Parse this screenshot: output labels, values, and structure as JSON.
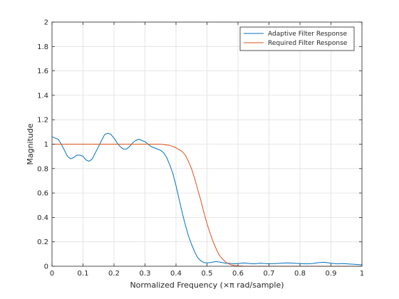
{
  "chart_data": {
    "type": "line",
    "title": "",
    "xlabel": "Normalized Frequency  (×π rad/sample)",
    "ylabel": "Magnitude",
    "xlim": [
      0,
      1
    ],
    "ylim": [
      0,
      2
    ],
    "xticks": [
      0,
      0.1,
      0.2,
      0.3,
      0.4,
      0.5,
      0.6,
      0.7,
      0.8,
      0.9,
      1
    ],
    "xtick_labels": [
      "0",
      "0.1",
      "0.2",
      "0.3",
      "0.4",
      "0.5",
      "0.6",
      "0.7",
      "0.8",
      "0.9",
      "1"
    ],
    "yticks": [
      0,
      0.2,
      0.4,
      0.6,
      0.8,
      1,
      1.2,
      1.4,
      1.6,
      1.8,
      2
    ],
    "ytick_labels": [
      "0",
      "0.2",
      "0.4",
      "0.6",
      "0.8",
      "1",
      "1.2",
      "1.4",
      "1.6",
      "1.8",
      "2"
    ],
    "grid": true,
    "legend_position": "top-right",
    "series": [
      {
        "name": "Adaptive Filter Response",
        "color": "#0072BD",
        "x": [
          0,
          0.01,
          0.02,
          0.03,
          0.04,
          0.05,
          0.06,
          0.07,
          0.08,
          0.09,
          0.1,
          0.11,
          0.12,
          0.13,
          0.14,
          0.15,
          0.16,
          0.17,
          0.18,
          0.19,
          0.2,
          0.21,
          0.22,
          0.23,
          0.24,
          0.25,
          0.26,
          0.27,
          0.28,
          0.29,
          0.3,
          0.31,
          0.32,
          0.33,
          0.34,
          0.35,
          0.36,
          0.37,
          0.38,
          0.39,
          0.4,
          0.41,
          0.42,
          0.43,
          0.44,
          0.45,
          0.46,
          0.47,
          0.48,
          0.49,
          0.5,
          0.51,
          0.52,
          0.53,
          0.54,
          0.55,
          0.56,
          0.57,
          0.58,
          0.59,
          0.6,
          0.61,
          0.62,
          0.63,
          0.64,
          0.65,
          0.66,
          0.67,
          0.68,
          0.69,
          0.7,
          0.72,
          0.74,
          0.76,
          0.78,
          0.8,
          0.82,
          0.84,
          0.86,
          0.88,
          0.9,
          0.92,
          0.94,
          0.96,
          0.98,
          1
        ],
        "y": [
          1.06,
          1.05,
          1.04,
          1.0,
          0.95,
          0.9,
          0.88,
          0.89,
          0.91,
          0.91,
          0.9,
          0.87,
          0.86,
          0.88,
          0.93,
          0.98,
          1.03,
          1.08,
          1.09,
          1.08,
          1.05,
          1.01,
          0.98,
          0.96,
          0.96,
          0.98,
          1.01,
          1.03,
          1.04,
          1.03,
          1.02,
          1.0,
          0.98,
          0.97,
          0.96,
          0.95,
          0.93,
          0.89,
          0.83,
          0.76,
          0.66,
          0.55,
          0.44,
          0.34,
          0.25,
          0.18,
          0.12,
          0.07,
          0.045,
          0.03,
          0.028,
          0.03,
          0.035,
          0.038,
          0.035,
          0.03,
          0.025,
          0.025,
          0.022,
          0.02,
          0.022,
          0.025,
          0.027,
          0.025,
          0.022,
          0.02,
          0.022,
          0.025,
          0.024,
          0.022,
          0.02,
          0.022,
          0.025,
          0.028,
          0.025,
          0.022,
          0.02,
          0.022,
          0.03,
          0.032,
          0.025,
          0.02,
          0.022,
          0.018,
          0.015,
          0.012
        ]
      },
      {
        "name": "Required Filter Response",
        "color": "#D95319",
        "x": [
          0,
          0.1,
          0.2,
          0.3,
          0.35,
          0.38,
          0.4,
          0.42,
          0.43,
          0.44,
          0.45,
          0.46,
          0.47,
          0.48,
          0.49,
          0.5,
          0.51,
          0.52,
          0.53,
          0.54,
          0.55,
          0.56,
          0.57,
          0.58,
          0.59,
          0.6,
          0.62,
          0.65,
          0.7,
          0.8,
          0.9,
          1
        ],
        "y": [
          1.0,
          1.0,
          1.0,
          1.0,
          1.0,
          0.99,
          0.97,
          0.94,
          0.91,
          0.86,
          0.8,
          0.72,
          0.63,
          0.54,
          0.44,
          0.35,
          0.27,
          0.2,
          0.14,
          0.09,
          0.06,
          0.035,
          0.02,
          0.01,
          0.005,
          0.003,
          0.001,
          0.0,
          0.0,
          0.0,
          0.0,
          0.0
        ]
      }
    ]
  }
}
